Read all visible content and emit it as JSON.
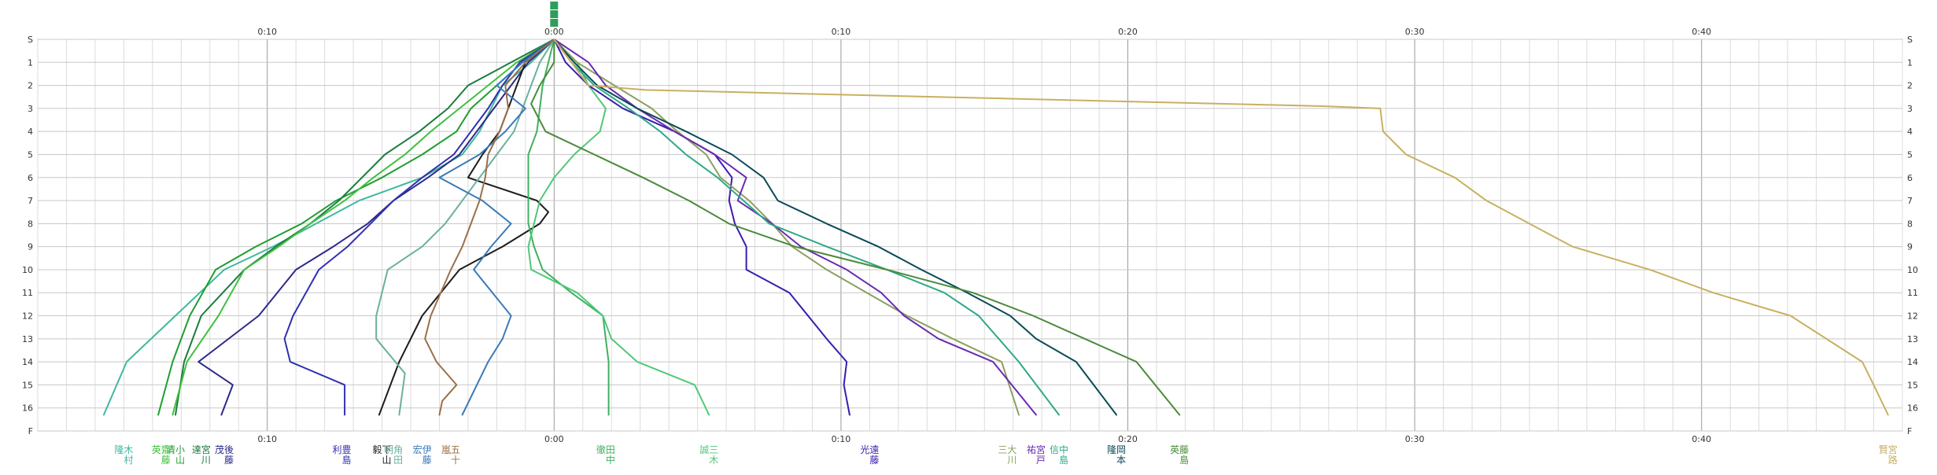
{
  "chart_data": {
    "type": "line",
    "title": "",
    "xlabel": "",
    "ylabel": "",
    "x_unit": "minutes relative to leader",
    "xlim": [
      -18,
      47
    ],
    "ylim": [
      0,
      17
    ],
    "x_ticks": [
      -10,
      0,
      10,
      20,
      30,
      40
    ],
    "x_tick_labels": [
      "0:10",
      "0:00",
      "0:10",
      "0:20",
      "0:30",
      "0:40"
    ],
    "y_ticks": [
      0,
      1,
      2,
      3,
      4,
      5,
      6,
      7,
      8,
      9,
      10,
      11,
      12,
      13,
      14,
      15,
      16,
      17
    ],
    "y_tick_labels": [
      "S",
      "1",
      "2",
      "3",
      "4",
      "5",
      "6",
      "7",
      "8",
      "9",
      "10",
      "11",
      "12",
      "13",
      "14",
      "15",
      "16",
      "F"
    ],
    "grid": true,
    "legend": "none",
    "top_marker_color": "#2e9e5a",
    "series": [
      {
        "name": "木村 隆",
        "color": "#3fb8a0",
        "label_x": -15.0,
        "x": [
          0,
          -0.8,
          -1.8,
          -2.2,
          -2.6,
          -3.2,
          -4.6,
          -6.8,
          -8.3,
          -9.8,
          -11.5,
          -13.2,
          -14.9,
          -15.7
        ],
        "y": [
          0,
          1,
          2,
          3,
          4,
          5,
          6,
          7,
          8,
          9,
          10,
          12,
          14,
          16.3
        ]
      },
      {
        "name": "小山 清",
        "color": "#1e9e30",
        "label_x": -13.2,
        "x": [
          0,
          -1.1,
          -2.0,
          -2.9,
          -3.4,
          -4.6,
          -6.0,
          -7.6,
          -8.8,
          -10.4,
          -11.8,
          -12.7,
          -13.3,
          -13.8
        ],
        "y": [
          0,
          1,
          2,
          3,
          4,
          5,
          6,
          7,
          8,
          9,
          10,
          12,
          14,
          16.3
        ]
      },
      {
        "name": "宮川 達",
        "color": "#1a7c3f",
        "label_x": -12.3,
        "x": [
          0,
          -1.5,
          -3.0,
          -3.7,
          -4.7,
          -5.9,
          -6.7,
          -7.5,
          -8.5,
          -9.7,
          -10.8,
          -12.3,
          -12.9,
          -13.2
        ],
        "y": [
          0,
          1,
          2,
          3,
          4,
          5,
          6,
          7,
          8,
          9,
          10,
          12,
          14,
          16.3
        ]
      },
      {
        "name": "後藤 茂",
        "color": "#2c2a8a",
        "label_x": -11.5,
        "x": [
          0,
          -0.9,
          -1.5,
          -2.1,
          -2.7,
          -3.3,
          -4.4,
          -5.6,
          -6.5,
          -7.7,
          -9.0,
          -10.3,
          -12.4,
          -11.2,
          -11.6
        ],
        "y": [
          0,
          1,
          2,
          3,
          4,
          5,
          6,
          7,
          8,
          9,
          10,
          12,
          14,
          15,
          16.3
        ]
      },
      {
        "name": "齋藤 英",
        "color": "#40c040",
        "label_x": -13.7,
        "x": [
          0,
          -1.3,
          -2.3,
          -3.3,
          -4.3,
          -5.2,
          -6.3,
          -7.3,
          -8.5,
          -9.6,
          -10.8,
          -11.7,
          -12.8,
          -13.3
        ],
        "y": [
          0,
          1,
          2,
          3,
          4,
          5,
          6,
          7,
          8,
          9,
          10,
          12,
          14,
          16.3
        ]
      },
      {
        "name": "豊島 利",
        "color": "#3030b0",
        "label_x": -7.4,
        "x": [
          0,
          -1.2,
          -1.8,
          -2.3,
          -2.9,
          -3.5,
          -4.6,
          -5.6,
          -6.4,
          -7.2,
          -8.2,
          -9.1,
          -9.4,
          -9.2,
          -7.3,
          -7.3
        ],
        "y": [
          0,
          1,
          2,
          3,
          4,
          5,
          6,
          7,
          8,
          9,
          10,
          12,
          13,
          14,
          15,
          16.3
        ]
      },
      {
        "name": "下山 毅",
        "color": "#1c1c1c",
        "label_x": -6.0,
        "x": [
          0,
          -1.0,
          -1.3,
          -1.6,
          -1.9,
          -2.5,
          -3.0,
          -0.6,
          -0.2,
          -0.5,
          -1.8,
          -3.3,
          -4.6,
          -5.4,
          -6.1
        ],
        "y": [
          0,
          1,
          2,
          3,
          4,
          5,
          6,
          7,
          7.5,
          8,
          9,
          10,
          12,
          14,
          16.3
        ]
      },
      {
        "name": "角田 明",
        "color": "#6ab0a0",
        "label_x": -5.6,
        "x": [
          0,
          -0.5,
          -0.8,
          -1.1,
          -1.4,
          -2.0,
          -2.6,
          -3.2,
          -3.8,
          -4.6,
          -5.8,
          -6.2,
          -6.2,
          -5.2,
          -5.4
        ],
        "y": [
          0,
          1,
          2,
          3,
          4,
          5,
          6,
          7,
          8,
          9,
          10,
          12,
          13,
          14.5,
          16.3
        ]
      },
      {
        "name": "伊藤 宏",
        "color": "#3a7ab8",
        "label_x": -4.6,
        "x": [
          0,
          -1.1,
          -2.0,
          -1.0,
          -1.7,
          -2.6,
          -4.0,
          -2.5,
          -1.5,
          -2.2,
          -2.8,
          -1.5,
          -1.8,
          -2.3,
          -3.2
        ],
        "y": [
          0,
          1,
          2,
          3,
          4,
          5,
          6,
          7,
          8,
          9,
          10,
          12,
          13,
          14,
          16.3
        ]
      },
      {
        "name": "五十 嵐",
        "color": "#9a7048",
        "label_x": -3.6,
        "x": [
          0,
          -1.0,
          -1.7,
          -1.6,
          -1.9,
          -2.3,
          -2.4,
          -2.6,
          -2.9,
          -3.2,
          -3.6,
          -4.3,
          -4.5,
          -4.1,
          -3.4,
          -3.9,
          -4.0
        ],
        "y": [
          0,
          1,
          2,
          3,
          4,
          5,
          6,
          7,
          8,
          9,
          10,
          12,
          13,
          14,
          15,
          15.7,
          16.3
        ]
      },
      {
        "name": "田中 徹",
        "color": "#40b060",
        "label_x": 1.8,
        "x": [
          0,
          -0.2,
          -0.4,
          -0.5,
          -0.6,
          -0.9,
          -0.9,
          -0.9,
          -0.9,
          -0.7,
          -0.4,
          0.6,
          1.7,
          1.8,
          1.9,
          1.9
        ],
        "y": [
          0,
          1,
          2,
          3,
          4,
          5,
          6,
          7,
          8,
          9,
          10,
          11,
          12,
          13,
          14,
          16.3
        ]
      },
      {
        "name": "三木 誠",
        "color": "#50c878",
        "label_x": 5.4,
        "x": [
          0,
          0.8,
          1.2,
          1.8,
          1.6,
          0.7,
          0.0,
          -0.5,
          -0.7,
          -0.9,
          -0.8,
          0.8,
          1.7,
          2.0,
          2.9,
          4.9,
          5.4
        ],
        "y": [
          0,
          1,
          2,
          3,
          4,
          5,
          6,
          7,
          8,
          9,
          10,
          11,
          12,
          13,
          14,
          15,
          16.3
        ]
      },
      {
        "name": "遠藤 光",
        "color": "#3a1cb0",
        "label_x": 11.0,
        "x": [
          0,
          0.4,
          1.2,
          2.4,
          4.2,
          5.6,
          6.2,
          6.1,
          6.3,
          6.7,
          6.7,
          8.2,
          9.5,
          10.2,
          10.1,
          10.3
        ],
        "y": [
          0,
          1,
          2,
          3,
          4,
          5,
          6,
          7,
          8,
          9,
          10,
          11,
          13,
          14,
          15,
          16.3
        ]
      },
      {
        "name": "大川 三",
        "color": "#8aa060",
        "label_x": 15.8,
        "x": [
          0,
          0.8,
          2.1,
          3.4,
          4.3,
          5.3,
          5.8,
          6.8,
          7.6,
          8.3,
          9.5,
          10.9,
          12.3,
          13.9,
          15.6,
          16.2
        ],
        "y": [
          0,
          1,
          2,
          3,
          4,
          5,
          6,
          7,
          8,
          9,
          10,
          11,
          12,
          13,
          14,
          16.3
        ]
      },
      {
        "name": "宮戸 祐",
        "color": "#6a2ab0",
        "label_x": 16.8,
        "x": [
          0,
          1.2,
          1.8,
          2.9,
          4.2,
          5.6,
          6.7,
          6.4,
          7.6,
          8.6,
          10.2,
          11.4,
          12.2,
          13.4,
          15.3,
          16.8
        ],
        "y": [
          0,
          1,
          2,
          3,
          4,
          5,
          6,
          7,
          8,
          9,
          10,
          11,
          12,
          13,
          14,
          16.3
        ]
      },
      {
        "name": "中島 信",
        "color": "#2fa888",
        "label_x": 17.6,
        "x": [
          0,
          0.6,
          1.4,
          2.6,
          3.7,
          4.6,
          5.7,
          6.6,
          7.5,
          9.5,
          11.6,
          13.6,
          14.8,
          15.5,
          16.2,
          17.6
        ],
        "y": [
          0,
          1,
          2,
          3,
          4,
          5,
          6,
          7,
          8,
          9,
          10,
          11,
          12,
          13,
          14,
          16.3
        ]
      },
      {
        "name": "岡本 隆",
        "color": "#0b4a58",
        "label_x": 19.6,
        "x": [
          0,
          0.7,
          1.5,
          2.9,
          4.6,
          6.2,
          7.3,
          7.8,
          9.5,
          11.3,
          12.8,
          14.4,
          15.9,
          16.8,
          18.2,
          19.6
        ],
        "y": [
          0,
          1,
          2,
          3,
          4,
          5,
          6,
          7,
          8,
          9,
          10,
          11,
          12,
          13,
          14,
          16.3
        ]
      },
      {
        "name": "藤島 英",
        "color": "#4a8a3a",
        "label_x": 21.8,
        "x": [
          0,
          0.0,
          -0.5,
          -0.8,
          -0.3,
          1.4,
          3.1,
          4.7,
          6.1,
          8.4,
          11.6,
          14.6,
          16.7,
          18.5,
          20.3,
          21.8
        ],
        "y": [
          0,
          1,
          2,
          2.8,
          4,
          5,
          6,
          7,
          8,
          9,
          10,
          11,
          12,
          13,
          14,
          16.3
        ]
      },
      {
        "name": "宮路 賢",
        "color": "#c8b060",
        "label_x": 46.5,
        "x": [
          0,
          0.6,
          1.2,
          3.2,
          26.8,
          28.8,
          28.9,
          29.7,
          31.4,
          32.5,
          35.5,
          38.2,
          40.4,
          43.1,
          45.6,
          46.0,
          46.5
        ],
        "y": [
          0,
          1,
          2,
          2.2,
          2.9,
          3.0,
          4.0,
          5.0,
          6.0,
          7.0,
          9.0,
          10.0,
          11.0,
          12.0,
          14.0,
          15.0,
          16.3
        ]
      }
    ]
  }
}
